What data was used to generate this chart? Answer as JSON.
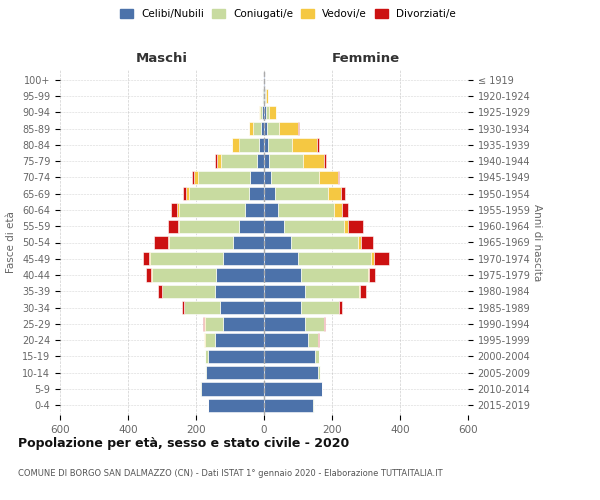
{
  "age_groups": [
    "0-4",
    "5-9",
    "10-14",
    "15-19",
    "20-24",
    "25-29",
    "30-34",
    "35-39",
    "40-44",
    "45-49",
    "50-54",
    "55-59",
    "60-64",
    "65-69",
    "70-74",
    "75-79",
    "80-84",
    "85-89",
    "90-94",
    "95-99",
    "100+"
  ],
  "birth_years": [
    "2015-2019",
    "2010-2014",
    "2005-2009",
    "2000-2004",
    "1995-1999",
    "1990-1994",
    "1985-1989",
    "1980-1984",
    "1975-1979",
    "1970-1974",
    "1965-1969",
    "1960-1964",
    "1955-1959",
    "1950-1954",
    "1945-1949",
    "1940-1944",
    "1935-1939",
    "1930-1934",
    "1925-1929",
    "1920-1924",
    "≤ 1919"
  ],
  "maschi": {
    "celibi": [
      165,
      185,
      170,
      165,
      145,
      120,
      130,
      145,
      140,
      120,
      90,
      75,
      55,
      45,
      40,
      22,
      15,
      8,
      5,
      3,
      2
    ],
    "coniugati": [
      1,
      2,
      5,
      10,
      30,
      55,
      105,
      155,
      190,
      215,
      190,
      175,
      195,
      175,
      155,
      105,
      60,
      25,
      8,
      2,
      0
    ],
    "vedovi": [
      0,
      0,
      0,
      0,
      1,
      1,
      1,
      1,
      2,
      2,
      3,
      3,
      5,
      8,
      12,
      12,
      18,
      10,
      3,
      1,
      0
    ],
    "divorziati": [
      0,
      0,
      0,
      0,
      1,
      2,
      5,
      12,
      15,
      20,
      40,
      30,
      18,
      10,
      5,
      4,
      2,
      0,
      0,
      0,
      0
    ]
  },
  "femmine": {
    "nubili": [
      145,
      170,
      160,
      150,
      130,
      120,
      110,
      120,
      110,
      100,
      80,
      60,
      42,
      32,
      22,
      15,
      12,
      10,
      6,
      4,
      2
    ],
    "coniugate": [
      1,
      2,
      5,
      12,
      30,
      55,
      110,
      160,
      195,
      215,
      195,
      175,
      165,
      155,
      140,
      100,
      70,
      35,
      10,
      2,
      0
    ],
    "vedove": [
      0,
      0,
      0,
      0,
      0,
      1,
      2,
      3,
      4,
      8,
      10,
      12,
      22,
      40,
      55,
      60,
      75,
      55,
      18,
      5,
      0
    ],
    "divorziate": [
      0,
      0,
      0,
      0,
      1,
      3,
      8,
      18,
      18,
      45,
      35,
      45,
      18,
      10,
      5,
      6,
      5,
      2,
      0,
      0,
      0
    ]
  },
  "colors": {
    "celibi": "#4C72AA",
    "coniugati": "#C8DBA0",
    "vedovi": "#F5C842",
    "divorziati": "#CC1111"
  },
  "xlim": 600,
  "title": "Popolazione per età, sesso e stato civile - 2020",
  "subtitle": "COMUNE DI BORGO SAN DALMAZZO (CN) - Dati ISTAT 1° gennaio 2020 - Elaborazione TUTTAITALIA.IT",
  "xlabel_left": "Maschi",
  "xlabel_right": "Femmine",
  "ylabel_left": "Fasce di età",
  "ylabel_right": "Anni di nascita",
  "bg_color": "#ffffff",
  "grid_color": "#bbbbbb"
}
